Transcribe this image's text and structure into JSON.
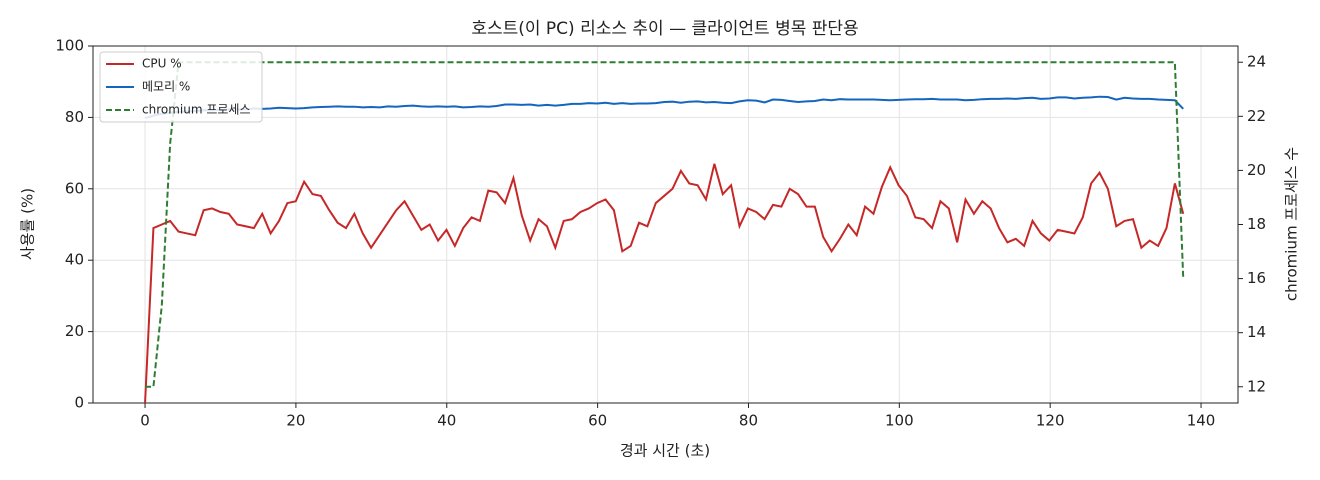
{
  "chart_data": {
    "type": "line",
    "title": "호스트(이 PC) 리소스 추이 — 클라이언트 병목 판단용",
    "x_label": "경과 시간 (초)",
    "y_label": "사용률 (%)",
    "y2_label": "chromium 프로세스 수",
    "x": [
      0,
      1.11,
      2.22,
      3.33,
      4.44,
      5.55,
      6.66,
      7.77,
      8.88,
      9.99,
      11.1,
      12.21,
      13.32,
      14.43,
      15.54,
      16.65,
      17.76,
      18.87,
      19.98,
      21.09,
      22.2,
      23.31,
      24.42,
      25.53,
      26.64,
      27.75,
      28.86,
      29.97,
      31.08,
      32.19,
      33.3,
      34.41,
      35.52,
      36.63,
      37.74,
      38.85,
      39.96,
      41.07,
      42.18,
      43.29,
      44.4,
      45.51,
      46.62,
      47.73,
      48.84,
      49.95,
      51.06,
      52.17,
      53.28,
      54.39,
      55.5,
      56.61,
      57.72,
      58.83,
      59.94,
      61.05,
      62.16,
      63.27,
      64.38,
      65.49,
      66.6,
      67.71,
      68.82,
      69.93,
      71.04,
      72.15,
      73.26,
      74.37,
      75.48,
      76.59,
      77.7,
      78.81,
      79.92,
      81.03,
      82.14,
      83.25,
      84.36,
      85.47,
      86.58,
      87.69,
      88.8,
      89.91,
      91.02,
      92.13,
      93.24,
      94.35,
      95.46,
      96.57,
      97.68,
      98.79,
      99.9,
      101.01,
      102.12,
      103.23,
      104.34,
      105.45,
      106.56,
      107.67,
      108.78,
      109.89,
      111,
      112.11,
      113.22,
      114.33,
      115.44,
      116.55,
      117.66,
      118.77,
      119.88,
      120.99,
      122.1,
      123.21,
      124.32,
      125.43,
      126.54,
      127.65,
      128.76,
      129.87,
      130.98,
      132.09,
      133.2,
      134.31,
      135.42,
      136.53,
      137.64
    ],
    "series": [
      {
        "name": "CPU %",
        "color": "#c62828",
        "linestyle": "solid",
        "axis": "y",
        "values": [
          0,
          49,
          50,
          51,
          48,
          47.5,
          47,
          54,
          54.5,
          53.5,
          53,
          50,
          49.5,
          49,
          53,
          47.5,
          51,
          56,
          56.5,
          62,
          58.5,
          58,
          54,
          50.5,
          49,
          53,
          47.5,
          43.5,
          47,
          50.5,
          54,
          56.5,
          52.5,
          48.5,
          50,
          45.5,
          48.5,
          44,
          49,
          52,
          51,
          59.5,
          59,
          56,
          63,
          52.5,
          45.5,
          51.5,
          49.5,
          43.5,
          51,
          51.5,
          53.5,
          54.5,
          56,
          57,
          54,
          42.5,
          44,
          50.5,
          49.5,
          56,
          58,
          60,
          65,
          61.5,
          61,
          57,
          67,
          58.5,
          61,
          49.5,
          54.5,
          53.5,
          51.5,
          55.5,
          55,
          60,
          58.5,
          55,
          55,
          46.5,
          42.5,
          46,
          50,
          47,
          55,
          53,
          60.5,
          66,
          61,
          58,
          52,
          51.5,
          49,
          56.5,
          54.5,
          45,
          57,
          53,
          56.5,
          54.5,
          49,
          45,
          46,
          44,
          51,
          47.5,
          45.5,
          48.5,
          48,
          47.5,
          52,
          61.5,
          64.5,
          60,
          49.5,
          51,
          51.5,
          43.5,
          45.5,
          44,
          49,
          61.5,
          53
        ]
      },
      {
        "name": "메모리 %",
        "color": "#1565c0",
        "linestyle": "solid",
        "axis": "y",
        "values": [
          79.8,
          80.5,
          81,
          81.3,
          81.5,
          81.7,
          81.8,
          82,
          82,
          82.1,
          82.2,
          82.2,
          82.3,
          82.5,
          82.4,
          82.5,
          82.7,
          82.6,
          82.5,
          82.6,
          82.8,
          82.9,
          83,
          83.1,
          83,
          83,
          82.8,
          82.9,
          82.8,
          83.1,
          83,
          83.2,
          83.3,
          83.1,
          83,
          83.1,
          83,
          83.1,
          82.8,
          82.9,
          83.1,
          83,
          83.2,
          83.6,
          83.6,
          83.5,
          83.6,
          83.3,
          83.5,
          83.3,
          83.5,
          83.8,
          83.8,
          84,
          83.9,
          84.1,
          83.8,
          84,
          83.8,
          83.9,
          83.9,
          84,
          84.3,
          84.4,
          84.1,
          84.4,
          84.5,
          84.2,
          84.3,
          84.1,
          84,
          84.5,
          84.8,
          84.7,
          84.2,
          85,
          84.9,
          84.6,
          84.3,
          84.5,
          84.6,
          85,
          84.8,
          85.1,
          85,
          85,
          85,
          85,
          84.9,
          84.8,
          84.9,
          85,
          85.1,
          85.1,
          85.2,
          85,
          85,
          85,
          84.8,
          84.9,
          85.1,
          85.2,
          85.2,
          85.3,
          85.2,
          85.4,
          85.5,
          85.2,
          85.3,
          85.6,
          85.6,
          85.3,
          85.5,
          85.6,
          85.8,
          85.7,
          85,
          85.5,
          85.3,
          85.2,
          85.2,
          85,
          84.9,
          84.8,
          82.4
        ]
      },
      {
        "name": "chromium 프로세스",
        "color": "#2e7d32",
        "linestyle": "dashed",
        "axis": "y2",
        "values": [
          12,
          12,
          15,
          21,
          24,
          24,
          24,
          24,
          24,
          24,
          24,
          24,
          24,
          24,
          24,
          24,
          24,
          24,
          24,
          24,
          24,
          24,
          24,
          24,
          24,
          24,
          24,
          24,
          24,
          24,
          24,
          24,
          24,
          24,
          24,
          24,
          24,
          24,
          24,
          24,
          24,
          24,
          24,
          24,
          24,
          24,
          24,
          24,
          24,
          24,
          24,
          24,
          24,
          24,
          24,
          24,
          24,
          24,
          24,
          24,
          24,
          24,
          24,
          24,
          24,
          24,
          24,
          24,
          24,
          24,
          24,
          24,
          24,
          24,
          24,
          24,
          24,
          24,
          24,
          24,
          24,
          24,
          24,
          24,
          24,
          24,
          24,
          24,
          24,
          24,
          24,
          24,
          24,
          24,
          24,
          24,
          24,
          24,
          24,
          24,
          24,
          24,
          24,
          24,
          24,
          24,
          24,
          24,
          24,
          24,
          24,
          24,
          24,
          24,
          24,
          24,
          24,
          24,
          24,
          24,
          24,
          24,
          24,
          24,
          16
        ]
      }
    ],
    "xlim": [
      -6.9,
      144.9
    ],
    "xticks": [
      0,
      20,
      40,
      60,
      80,
      100,
      120,
      140
    ],
    "ylim": [
      0,
      100
    ],
    "yticks": [
      0,
      20,
      40,
      60,
      80,
      100
    ],
    "y2lim": [
      11.4,
      24.6
    ],
    "y2ticks": [
      12,
      14,
      16,
      18,
      20,
      22,
      24
    ],
    "grid": true,
    "legend": "upper left"
  }
}
